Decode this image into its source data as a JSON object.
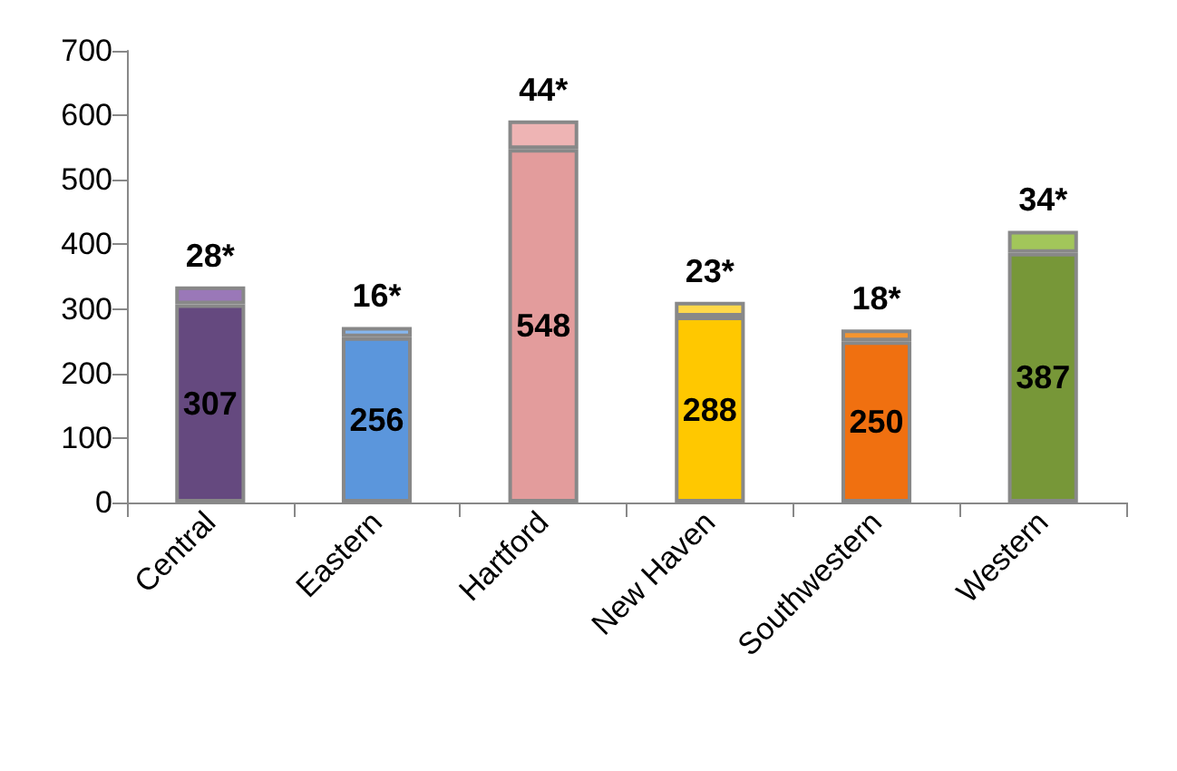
{
  "chart_data": {
    "type": "bar",
    "stacked": true,
    "categories": [
      "Central",
      "Eastern",
      "Hartford",
      "New Haven",
      "Southwestern",
      "Western"
    ],
    "series": [
      {
        "colors": [
          "#65497f",
          "#5b96dc",
          "#e39c9c",
          "#ffc800",
          "#f07010",
          "#779738"
        ],
        "values": [
          307,
          256,
          548,
          288,
          250,
          387
        ],
        "value_labels": [
          "307",
          "256",
          "548",
          "288",
          "250",
          "387"
        ]
      },
      {
        "colors": [
          "#9a78b8",
          "#86b6ee",
          "#eeb4b4",
          "#ffd84a",
          "#f5952f",
          "#a2c65a"
        ],
        "values": [
          28,
          16,
          44,
          23,
          18,
          34
        ],
        "value_labels": [
          "28*",
          "16*",
          "44*",
          "23*",
          "18*",
          "34*"
        ]
      }
    ],
    "ylim": [
      0,
      700
    ],
    "yticks": [
      0,
      100,
      200,
      300,
      400,
      500,
      600,
      700
    ]
  }
}
